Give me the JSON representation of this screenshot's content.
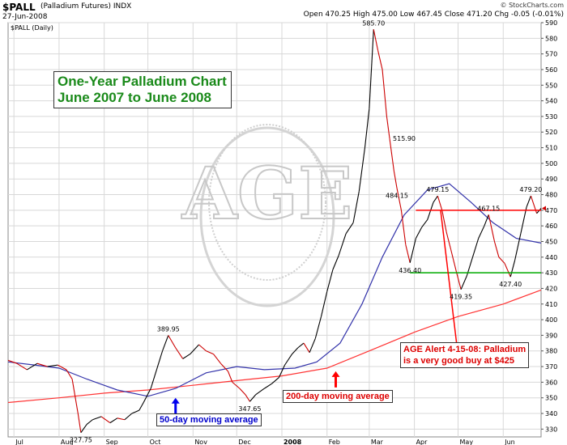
{
  "header": {
    "symbol": "$PALL",
    "symbol_desc": "(Palladium Futures) INDX",
    "date": "27-Jun-2008",
    "ohlc": "Open 470.25  High 475.00  Low 467.45  Close 471.20  Chg -0.05 (-0.01%)",
    "credit": "© StockCharts.com",
    "panel_label": "$PALL (Daily)"
  },
  "title_lines": [
    "One-Year Palladium Chart",
    "June 2007 to June 2008"
  ],
  "annotations": {
    "ma50": "50-day moving average",
    "ma200": "200-day moving average",
    "alert_line1": "AGE Alert 4-15-08: Palladium",
    "alert_line2": "is a very good buy at $425"
  },
  "colors": {
    "price_down": "#cc0000",
    "price_up": "#000000",
    "ma50": "#3333aa",
    "ma200": "#ff3333",
    "resistance": "#ff0000",
    "support": "#00aa00",
    "grid": "#d8d8d8"
  },
  "chart_data": {
    "type": "line",
    "title": "One-Year Palladium Chart",
    "subtitle": "June 2007 to June 2008",
    "ylim": [
      325,
      590
    ],
    "y_ticks": [
      330,
      340,
      350,
      360,
      370,
      380,
      390,
      400,
      410,
      420,
      430,
      440,
      450,
      460,
      470,
      480,
      490,
      500,
      510,
      520,
      530,
      540,
      550,
      560,
      570,
      580,
      590
    ],
    "x_ticks": [
      "Jul",
      "Aug",
      "Sep",
      "Oct",
      "Nov",
      "Dec",
      "2008",
      "Feb",
      "Mar",
      "Apr",
      "May",
      "Jun"
    ],
    "x_tick_dates": [
      "2007-07-01",
      "2007-08-01",
      "2007-09-01",
      "2007-10-01",
      "2007-11-01",
      "2007-12-01",
      "2008-01-01",
      "2008-02-01",
      "2008-03-01",
      "2008-04-01",
      "2008-05-01",
      "2008-06-01"
    ],
    "x_range": [
      "2007-06-27",
      "2008-06-27"
    ],
    "series": [
      {
        "name": "$PALL (Daily)",
        "points": [
          [
            "2007-06-27",
            374
          ],
          [
            "2007-07-03",
            372
          ],
          [
            "2007-07-10",
            368
          ],
          [
            "2007-07-17",
            372
          ],
          [
            "2007-07-24",
            370
          ],
          [
            "2007-07-31",
            371
          ],
          [
            "2007-08-06",
            368
          ],
          [
            "2007-08-10",
            362
          ],
          [
            "2007-08-14",
            340
          ],
          [
            "2007-08-16",
            327.75
          ],
          [
            "2007-08-20",
            333
          ],
          [
            "2007-08-24",
            336
          ],
          [
            "2007-08-30",
            338
          ],
          [
            "2007-09-05",
            334
          ],
          [
            "2007-09-10",
            337
          ],
          [
            "2007-09-15",
            336
          ],
          [
            "2007-09-20",
            340
          ],
          [
            "2007-09-25",
            342
          ],
          [
            "2007-09-28",
            347
          ],
          [
            "2007-10-03",
            356
          ],
          [
            "2007-10-07",
            368
          ],
          [
            "2007-10-11",
            380
          ],
          [
            "2007-10-15",
            389.95
          ],
          [
            "2007-10-20",
            382
          ],
          [
            "2007-10-25",
            375
          ],
          [
            "2007-10-30",
            378
          ],
          [
            "2007-11-05",
            384
          ],
          [
            "2007-11-10",
            380
          ],
          [
            "2007-11-15",
            378
          ],
          [
            "2007-11-20",
            372
          ],
          [
            "2007-11-25",
            367
          ],
          [
            "2007-11-28",
            360
          ],
          [
            "2007-12-03",
            356
          ],
          [
            "2007-12-07",
            352
          ],
          [
            "2007-12-10",
            347.65
          ],
          [
            "2007-12-14",
            352
          ],
          [
            "2007-12-20",
            356
          ],
          [
            "2007-12-25",
            359
          ],
          [
            "2007-12-30",
            363
          ],
          [
            "2008-01-03",
            371
          ],
          [
            "2008-01-08",
            378
          ],
          [
            "2008-01-12",
            382
          ],
          [
            "2008-01-16",
            385
          ],
          [
            "2008-01-20",
            379
          ],
          [
            "2008-01-24",
            388
          ],
          [
            "2008-01-28",
            402
          ],
          [
            "2008-02-01",
            418
          ],
          [
            "2008-02-05",
            432
          ],
          [
            "2008-02-09",
            441
          ],
          [
            "2008-02-14",
            455
          ],
          [
            "2008-02-19",
            462
          ],
          [
            "2008-02-23",
            482
          ],
          [
            "2008-02-27",
            510
          ],
          [
            "2008-03-01",
            535
          ],
          [
            "2008-03-04",
            585.7
          ],
          [
            "2008-03-07",
            572
          ],
          [
            "2008-03-10",
            560
          ],
          [
            "2008-03-13",
            530
          ],
          [
            "2008-03-15",
            515.9
          ],
          [
            "2008-03-18",
            495
          ],
          [
            "2008-03-20",
            484.15
          ],
          [
            "2008-03-23",
            470
          ],
          [
            "2008-03-26",
            448
          ],
          [
            "2008-03-29",
            436.4
          ],
          [
            "2008-04-02",
            452
          ],
          [
            "2008-04-06",
            459
          ],
          [
            "2008-04-10",
            464
          ],
          [
            "2008-04-14",
            475
          ],
          [
            "2008-04-17",
            479.15
          ],
          [
            "2008-04-20",
            470
          ],
          [
            "2008-04-23",
            456
          ],
          [
            "2008-04-26",
            445
          ],
          [
            "2008-04-30",
            430
          ],
          [
            "2008-05-03",
            419.35
          ],
          [
            "2008-05-07",
            428
          ],
          [
            "2008-05-11",
            440
          ],
          [
            "2008-05-15",
            452
          ],
          [
            "2008-05-19",
            460
          ],
          [
            "2008-05-22",
            467.15
          ],
          [
            "2008-05-26",
            450
          ],
          [
            "2008-05-29",
            440
          ],
          [
            "2008-06-02",
            436
          ],
          [
            "2008-06-06",
            427.4
          ],
          [
            "2008-06-09",
            438
          ],
          [
            "2008-06-13",
            455
          ],
          [
            "2008-06-17",
            472
          ],
          [
            "2008-06-20",
            479.2
          ],
          [
            "2008-06-24",
            468
          ],
          [
            "2008-06-27",
            471.2
          ]
        ]
      },
      {
        "name": "50-day moving average",
        "points": [
          [
            "2007-06-27",
            373
          ],
          [
            "2007-07-15",
            371
          ],
          [
            "2007-08-01",
            369
          ],
          [
            "2007-08-20",
            362
          ],
          [
            "2007-09-10",
            355
          ],
          [
            "2007-10-01",
            351
          ],
          [
            "2007-10-20",
            356
          ],
          [
            "2007-11-10",
            366
          ],
          [
            "2007-12-01",
            370
          ],
          [
            "2007-12-20",
            368
          ],
          [
            "2008-01-10",
            369
          ],
          [
            "2008-01-25",
            373
          ],
          [
            "2008-02-10",
            385
          ],
          [
            "2008-02-25",
            410
          ],
          [
            "2008-03-10",
            440
          ],
          [
            "2008-03-25",
            467
          ],
          [
            "2008-04-10",
            483
          ],
          [
            "2008-04-25",
            487
          ],
          [
            "2008-05-10",
            475
          ],
          [
            "2008-05-25",
            462
          ],
          [
            "2008-06-10",
            452
          ],
          [
            "2008-06-27",
            449
          ]
        ]
      },
      {
        "name": "200-day moving average",
        "points": [
          [
            "2007-06-27",
            347
          ],
          [
            "2007-08-01",
            350
          ],
          [
            "2007-09-01",
            353
          ],
          [
            "2007-10-01",
            355
          ],
          [
            "2007-11-01",
            358
          ],
          [
            "2007-12-01",
            361
          ],
          [
            "2008-01-01",
            364
          ],
          [
            "2008-02-01",
            369
          ],
          [
            "2008-03-01",
            380
          ],
          [
            "2008-04-01",
            392
          ],
          [
            "2008-05-01",
            402
          ],
          [
            "2008-06-01",
            410
          ],
          [
            "2008-06-27",
            419
          ]
        ]
      }
    ],
    "horizontal_lines": [
      {
        "name": "resistance",
        "y": 470,
        "x_start": "2008-04-02",
        "x_end": "2008-06-27"
      },
      {
        "name": "support",
        "y": 430,
        "x_start": "2008-03-29",
        "x_end": "2008-06-27"
      }
    ],
    "data_labels": [
      {
        "text": "327.75",
        "x": "2007-08-16",
        "y": 327.75,
        "pos": "below"
      },
      {
        "text": "389.95",
        "x": "2007-10-15",
        "y": 389.95,
        "pos": "above"
      },
      {
        "text": "347.65",
        "x": "2007-12-10",
        "y": 347.65,
        "pos": "below"
      },
      {
        "text": "585.70",
        "x": "2008-03-04",
        "y": 585.7,
        "pos": "above"
      },
      {
        "text": "515.90",
        "x": "2008-03-15",
        "y": 515.9,
        "pos": "right"
      },
      {
        "text": "484.15",
        "x": "2008-03-20",
        "y": 484.15,
        "pos": "below"
      },
      {
        "text": "436.40",
        "x": "2008-03-29",
        "y": 436.4,
        "pos": "below"
      },
      {
        "text": "479.15",
        "x": "2008-04-17",
        "y": 479.15,
        "pos": "above"
      },
      {
        "text": "419.35",
        "x": "2008-05-03",
        "y": 419.35,
        "pos": "below"
      },
      {
        "text": "467.15",
        "x": "2008-05-22",
        "y": 467.15,
        "pos": "above"
      },
      {
        "text": "427.40",
        "x": "2008-06-06",
        "y": 427.4,
        "pos": "below"
      },
      {
        "text": "479.20",
        "x": "2008-06-20",
        "y": 479.2,
        "pos": "above"
      }
    ],
    "markers": [
      {
        "name": "ma50-arrow",
        "x": "2007-10-20",
        "y": 350
      },
      {
        "name": "ma200-arrow",
        "x": "2008-02-07",
        "y": 367
      },
      {
        "name": "alert-line",
        "x_start": "2008-04-19",
        "y_start": 470,
        "x_end": "2008-05-01",
        "y_end": 377
      }
    ],
    "grid": true,
    "ylabel": ""
  }
}
